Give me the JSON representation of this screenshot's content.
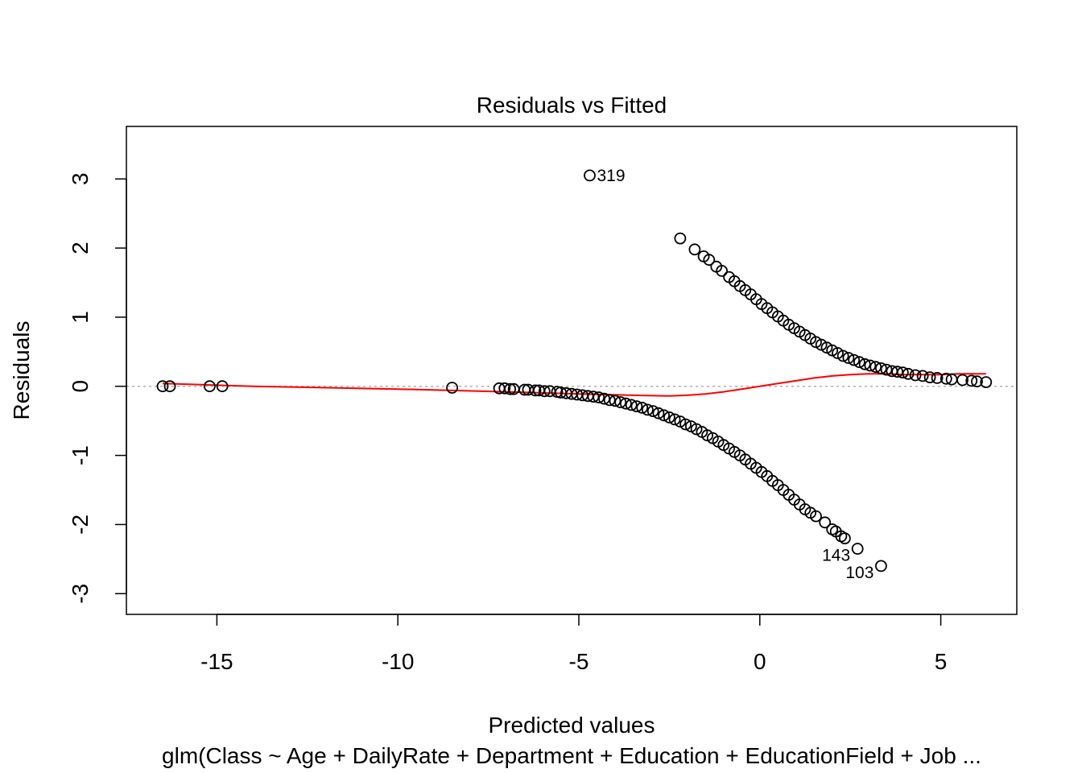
{
  "chart_data": {
    "type": "scatter",
    "title": "Residuals vs Fitted",
    "xlabel": "Predicted values",
    "ylabel": "Residuals",
    "subtitle": "glm(Class ~ Age + DailyRate + Department + Education + EducationField + Job ...",
    "xlim": [
      -17.5,
      7.1
    ],
    "ylim": [
      -3.3,
      3.76
    ],
    "x_ticks": [
      -15,
      -10,
      -5,
      0,
      5
    ],
    "y_ticks": [
      -3,
      -2,
      -1,
      0,
      1,
      2,
      3
    ],
    "reference_line": {
      "y": 0,
      "color": "#b0b0b0",
      "style": "dotted"
    },
    "point_color": "#000000",
    "smooth_color": "#ff0000",
    "labeled_points": [
      {
        "label": "319",
        "x": -4.7,
        "y": 3.05
      },
      {
        "label": "143",
        "x": 2.7,
        "y": -2.35
      },
      {
        "label": "103",
        "x": 3.35,
        "y": -2.6
      }
    ],
    "series": [
      {
        "points": [
          [
            -16.5,
            0.0
          ],
          [
            -16.3,
            0.0
          ],
          [
            -15.2,
            0.0
          ],
          [
            -14.85,
            0.0
          ],
          [
            -8.5,
            -0.02
          ],
          [
            -7.2,
            -0.03
          ],
          [
            -7.05,
            -0.03
          ],
          [
            -6.9,
            -0.04
          ],
          [
            -6.8,
            -0.04
          ],
          [
            -6.5,
            -0.05
          ],
          [
            -6.4,
            -0.05
          ],
          [
            -6.2,
            -0.06
          ],
          [
            -6.1,
            -0.06
          ],
          [
            -5.95,
            -0.07
          ],
          [
            -5.8,
            -0.07
          ],
          [
            -5.6,
            -0.08
          ],
          [
            -5.5,
            -0.09
          ],
          [
            -5.35,
            -0.1
          ],
          [
            -5.2,
            -0.11
          ],
          [
            -5.05,
            -0.12
          ],
          [
            -4.9,
            -0.13
          ],
          [
            -4.75,
            -0.14
          ],
          [
            -4.6,
            -0.15
          ],
          [
            -4.45,
            -0.16
          ],
          [
            -4.3,
            -0.18
          ],
          [
            -4.15,
            -0.2
          ],
          [
            -4.0,
            -0.21
          ],
          [
            -3.85,
            -0.23
          ],
          [
            -3.7,
            -0.25
          ],
          [
            -3.55,
            -0.27
          ],
          [
            -3.4,
            -0.29
          ],
          [
            -3.25,
            -0.31
          ],
          [
            -3.1,
            -0.34
          ],
          [
            -2.95,
            -0.36
          ],
          [
            -2.8,
            -0.39
          ],
          [
            -2.65,
            -0.42
          ],
          [
            -2.5,
            -0.45
          ],
          [
            -2.35,
            -0.48
          ],
          [
            -2.2,
            -0.51
          ],
          [
            -2.05,
            -0.55
          ],
          [
            -1.9,
            -0.58
          ],
          [
            -1.75,
            -0.62
          ],
          [
            -1.6,
            -0.66
          ],
          [
            -1.45,
            -0.71
          ],
          [
            -1.3,
            -0.75
          ],
          [
            -1.15,
            -0.8
          ],
          [
            -1.0,
            -0.85
          ],
          [
            -0.85,
            -0.9
          ],
          [
            -0.7,
            -0.95
          ],
          [
            -0.55,
            -1.0
          ],
          [
            -0.4,
            -1.06
          ],
          [
            -0.25,
            -1.12
          ],
          [
            -0.1,
            -1.18
          ],
          [
            0.05,
            -1.24
          ],
          [
            0.2,
            -1.3
          ],
          [
            0.35,
            -1.37
          ],
          [
            0.5,
            -1.43
          ],
          [
            0.65,
            -1.5
          ],
          [
            0.8,
            -1.57
          ],
          [
            0.95,
            -1.64
          ],
          [
            1.1,
            -1.71
          ],
          [
            1.25,
            -1.78
          ],
          [
            1.4,
            -1.83
          ],
          [
            1.55,
            -1.88
          ],
          [
            1.8,
            -1.97
          ],
          [
            2.0,
            -2.07
          ],
          [
            2.1,
            -2.1
          ],
          [
            2.25,
            -2.17
          ],
          [
            2.35,
            -2.2
          ],
          [
            2.7,
            -2.35
          ],
          [
            3.35,
            -2.6
          ],
          [
            -4.7,
            3.05
          ],
          [
            -2.2,
            2.14
          ],
          [
            -1.8,
            1.98
          ],
          [
            -1.55,
            1.88
          ],
          [
            -1.4,
            1.83
          ],
          [
            -1.2,
            1.73
          ],
          [
            -1.05,
            1.67
          ],
          [
            -0.85,
            1.58
          ],
          [
            -0.7,
            1.52
          ],
          [
            -0.55,
            1.45
          ],
          [
            -0.4,
            1.39
          ],
          [
            -0.25,
            1.33
          ],
          [
            -0.1,
            1.26
          ],
          [
            0.05,
            1.19
          ],
          [
            0.2,
            1.13
          ],
          [
            0.35,
            1.07
          ],
          [
            0.5,
            1.01
          ],
          [
            0.65,
            0.95
          ],
          [
            0.8,
            0.89
          ],
          [
            0.95,
            0.84
          ],
          [
            1.1,
            0.79
          ],
          [
            1.25,
            0.74
          ],
          [
            1.4,
            0.69
          ],
          [
            1.55,
            0.64
          ],
          [
            1.7,
            0.6
          ],
          [
            1.85,
            0.56
          ],
          [
            2.0,
            0.52
          ],
          [
            2.15,
            0.48
          ],
          [
            2.3,
            0.44
          ],
          [
            2.45,
            0.41
          ],
          [
            2.6,
            0.38
          ],
          [
            2.75,
            0.35
          ],
          [
            2.9,
            0.32
          ],
          [
            3.05,
            0.3
          ],
          [
            3.2,
            0.28
          ],
          [
            3.35,
            0.26
          ],
          [
            3.5,
            0.24
          ],
          [
            3.65,
            0.22
          ],
          [
            3.8,
            0.21
          ],
          [
            3.95,
            0.2
          ],
          [
            4.1,
            0.18
          ],
          [
            4.3,
            0.16
          ],
          [
            4.5,
            0.15
          ],
          [
            4.7,
            0.13
          ],
          [
            4.9,
            0.12
          ],
          [
            5.15,
            0.11
          ],
          [
            5.3,
            0.1
          ],
          [
            5.6,
            0.09
          ],
          [
            5.85,
            0.08
          ],
          [
            6.0,
            0.07
          ],
          [
            6.25,
            0.06
          ]
        ]
      }
    ],
    "smooth_line": [
      [
        -16.5,
        0.04
      ],
      [
        -14.0,
        0.0
      ],
      [
        -10.0,
        -0.04
      ],
      [
        -7.0,
        -0.08
      ],
      [
        -5.0,
        -0.11
      ],
      [
        -3.5,
        -0.13
      ],
      [
        -2.5,
        -0.14
      ],
      [
        -2.0,
        -0.13
      ],
      [
        -1.5,
        -0.11
      ],
      [
        -1.0,
        -0.08
      ],
      [
        -0.5,
        -0.04
      ],
      [
        0.0,
        0.0
      ],
      [
        0.5,
        0.04
      ],
      [
        1.0,
        0.08
      ],
      [
        1.5,
        0.12
      ],
      [
        2.0,
        0.15
      ],
      [
        2.5,
        0.17
      ],
      [
        3.0,
        0.18
      ],
      [
        3.5,
        0.18
      ],
      [
        4.0,
        0.17
      ],
      [
        4.5,
        0.17
      ],
      [
        5.0,
        0.17
      ],
      [
        5.5,
        0.18
      ],
      [
        6.25,
        0.18
      ]
    ]
  }
}
